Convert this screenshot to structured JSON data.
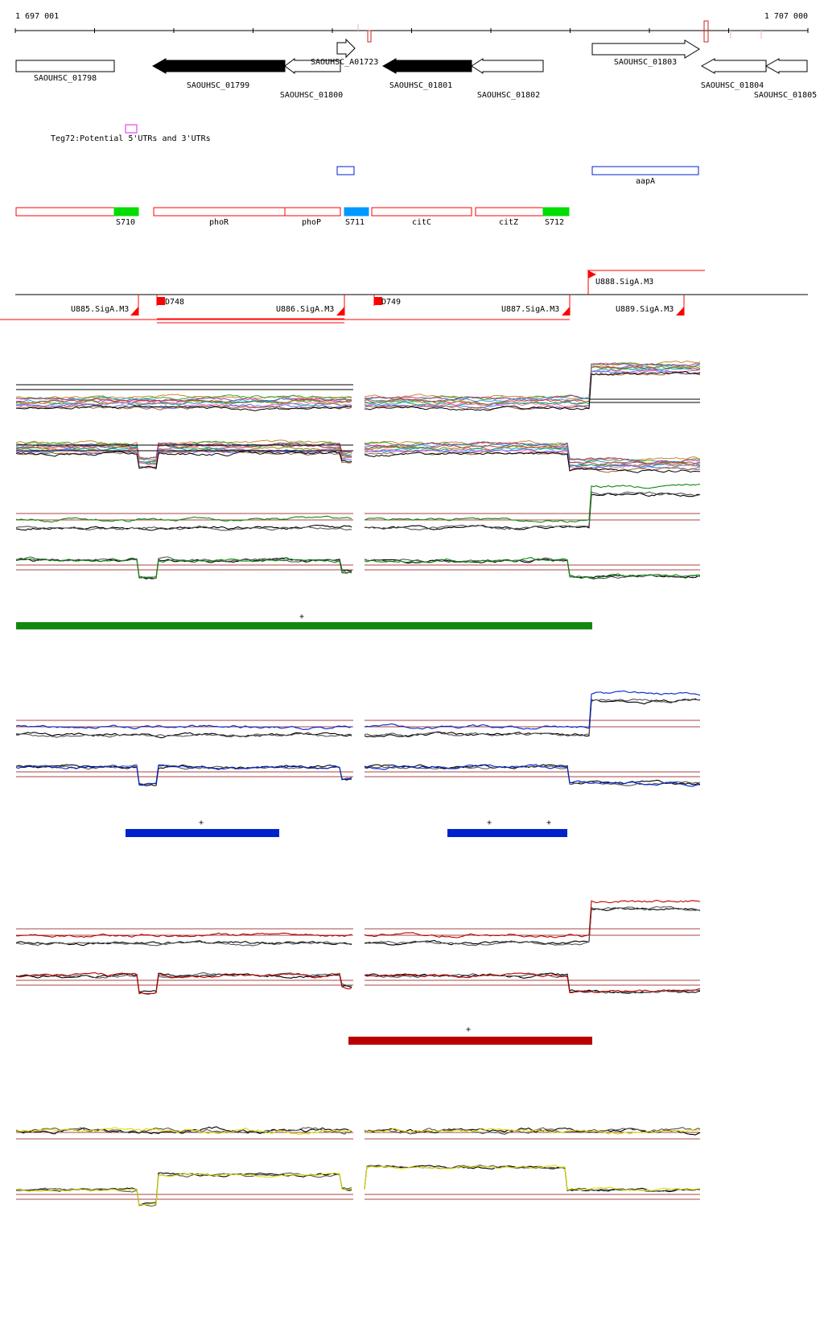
{
  "ruler": {
    "start_label": "1 697 001",
    "end_label": "1 707 000"
  },
  "genes": [
    {
      "label": "SAOUHSC_01798",
      "strand": "none",
      "filled": false
    },
    {
      "label": "SAOUHSC_01799",
      "strand": "minus",
      "filled": true
    },
    {
      "label": "SAOUHSC_01800",
      "strand": "minus",
      "filled": false
    },
    {
      "label": "SAOUHSC_A01723",
      "strand": "plus",
      "filled": false
    },
    {
      "label": "SAOUHSC_01801",
      "strand": "minus",
      "filled": true
    },
    {
      "label": "SAOUHSC_01802",
      "strand": "minus",
      "filled": false
    },
    {
      "label": "SAOUHSC_01803",
      "strand": "plus",
      "filled": false
    },
    {
      "label": "SAOUHSC_01804",
      "strand": "minus",
      "filled": false
    },
    {
      "label": "SAOUHSC_01805",
      "strand": "minus",
      "filled": false
    }
  ],
  "teg_label": "Teg72:Potential 5'UTRs and 3'UTRs",
  "blue_features": [
    {
      "label": ""
    },
    {
      "label": "aapA"
    }
  ],
  "segments": [
    {
      "label": "S710",
      "type": "srna"
    },
    {
      "label": "phoR",
      "type": "gene"
    },
    {
      "label": "phoP",
      "type": "gene"
    },
    {
      "label": "S711",
      "type": "srna-blue"
    },
    {
      "label": "citC",
      "type": "gene"
    },
    {
      "label": "citZ",
      "type": "gene"
    },
    {
      "label": "S712",
      "type": "srna"
    }
  ],
  "transcription_units": [
    {
      "label": "U885.SigA.M3"
    },
    {
      "label": "D748"
    },
    {
      "label": "U886.SigA.M3"
    },
    {
      "label": "D749"
    },
    {
      "label": "U887.SigA.M3"
    },
    {
      "label": "U888.SigA.M3"
    },
    {
      "label": "U889.SigA.M3"
    }
  ],
  "condition_colors": {
    "green": "#118811",
    "blue": "#0022cc",
    "red": "#bb0000",
    "yellow": "#dddd00",
    "feature_red": "#ff0000",
    "srna_green": "#00dd00",
    "srna_blue": "#0099ff",
    "threshold": "#aa4444"
  },
  "group_markers": [
    {
      "group": "green",
      "marks": [
        "+"
      ]
    },
    {
      "group": "blue",
      "marks": [
        "+",
        "+",
        "+"
      ]
    },
    {
      "group": "red",
      "marks": [
        "+"
      ]
    }
  ]
}
